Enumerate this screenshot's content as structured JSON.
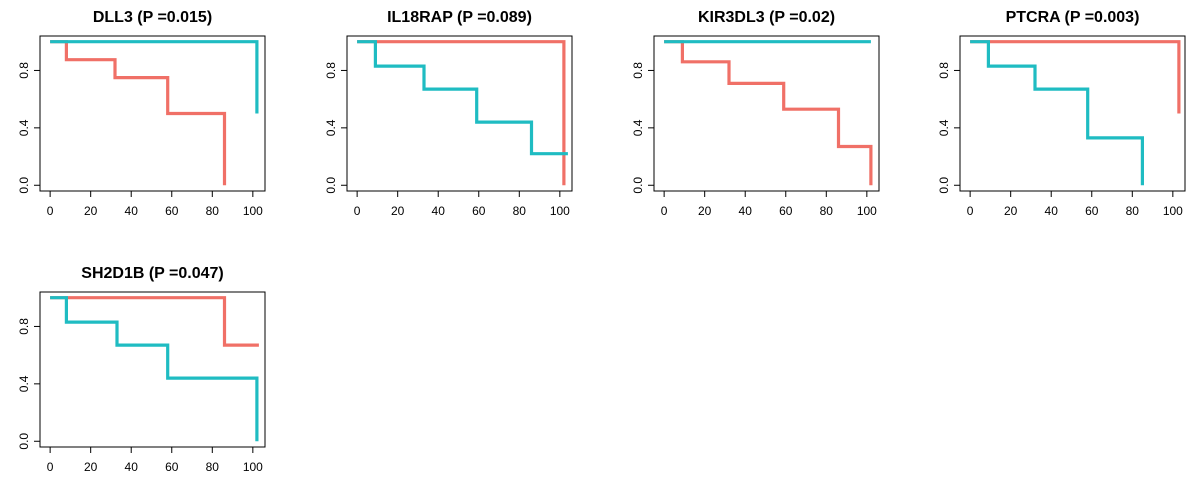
{
  "chart_data": [
    {
      "type": "line",
      "title": "DLL3 (P =0.015)",
      "xlabel": "",
      "ylabel": "",
      "xlim": [
        0,
        100
      ],
      "ylim": [
        0,
        1
      ],
      "x_ticks": [
        0,
        20,
        40,
        60,
        80,
        100
      ],
      "y_ticks": [
        "0.0",
        "0.4",
        "0.8"
      ],
      "grid": false,
      "series": [
        {
          "color": "#f07067",
          "x": [
            0,
            8,
            8,
            32,
            32,
            58,
            58,
            86,
            86
          ],
          "y": [
            1,
            1,
            0.875,
            0.875,
            0.75,
            0.75,
            0.5,
            0.5,
            0
          ]
        },
        {
          "color": "#1fbcc2",
          "x": [
            0,
            102,
            102
          ],
          "y": [
            1,
            1,
            0.5
          ]
        }
      ]
    },
    {
      "type": "line",
      "title": "IL18RAP (P =0.089)",
      "xlabel": "",
      "ylabel": "",
      "xlim": [
        0,
        100
      ],
      "ylim": [
        0,
        1
      ],
      "x_ticks": [
        0,
        20,
        40,
        60,
        80,
        100
      ],
      "y_ticks": [
        "0.0",
        "0.4",
        "0.8"
      ],
      "grid": false,
      "series": [
        {
          "color": "#f07067",
          "x": [
            0,
            102,
            102
          ],
          "y": [
            1,
            1,
            0
          ]
        },
        {
          "color": "#1fbcc2",
          "x": [
            0,
            9,
            9,
            33,
            33,
            59,
            59,
            86,
            86,
            104
          ],
          "y": [
            1,
            1,
            0.83,
            0.83,
            0.67,
            0.67,
            0.44,
            0.44,
            0.22,
            0.22
          ]
        }
      ]
    },
    {
      "type": "line",
      "title": "KIR3DL3 (P =0.02)",
      "xlabel": "",
      "ylabel": "",
      "xlim": [
        0,
        100
      ],
      "ylim": [
        0,
        1
      ],
      "x_ticks": [
        0,
        20,
        40,
        60,
        80,
        100
      ],
      "y_ticks": [
        "0.0",
        "0.4",
        "0.8"
      ],
      "grid": false,
      "series": [
        {
          "color": "#f07067",
          "x": [
            0,
            9,
            9,
            32,
            32,
            59,
            59,
            86,
            86,
            102,
            102
          ],
          "y": [
            1,
            1,
            0.86,
            0.86,
            0.71,
            0.71,
            0.53,
            0.53,
            0.27,
            0.27,
            0
          ]
        },
        {
          "color": "#1fbcc2",
          "x": [
            0,
            102
          ],
          "y": [
            1,
            1
          ]
        }
      ]
    },
    {
      "type": "line",
      "title": "PTCRA (P =0.003)",
      "xlabel": "",
      "ylabel": "",
      "xlim": [
        0,
        100
      ],
      "ylim": [
        0,
        1
      ],
      "x_ticks": [
        0,
        20,
        40,
        60,
        80,
        100
      ],
      "y_ticks": [
        "0.0",
        "0.4",
        "0.8"
      ],
      "grid": false,
      "series": [
        {
          "color": "#f07067",
          "x": [
            0,
            103,
            103
          ],
          "y": [
            1,
            1,
            0.5
          ]
        },
        {
          "color": "#1fbcc2",
          "x": [
            0,
            9,
            9,
            32,
            32,
            58,
            58,
            85,
            85
          ],
          "y": [
            1,
            1,
            0.83,
            0.83,
            0.67,
            0.67,
            0.33,
            0.33,
            0
          ]
        }
      ]
    },
    {
      "type": "line",
      "title": "SH2D1B (P =0.047)",
      "xlabel": "",
      "ylabel": "",
      "xlim": [
        0,
        100
      ],
      "ylim": [
        0,
        1
      ],
      "x_ticks": [
        0,
        20,
        40,
        60,
        80,
        100
      ],
      "y_ticks": [
        "0.0",
        "0.4",
        "0.8"
      ],
      "grid": false,
      "series": [
        {
          "color": "#f07067",
          "x": [
            0,
            86,
            86,
            103
          ],
          "y": [
            1,
            1,
            0.67,
            0.67
          ]
        },
        {
          "color": "#1fbcc2",
          "x": [
            0,
            8,
            8,
            33,
            33,
            58,
            58,
            102,
            102
          ],
          "y": [
            1,
            1,
            0.83,
            0.83,
            0.67,
            0.67,
            0.44,
            0.44,
            0
          ]
        }
      ]
    }
  ]
}
